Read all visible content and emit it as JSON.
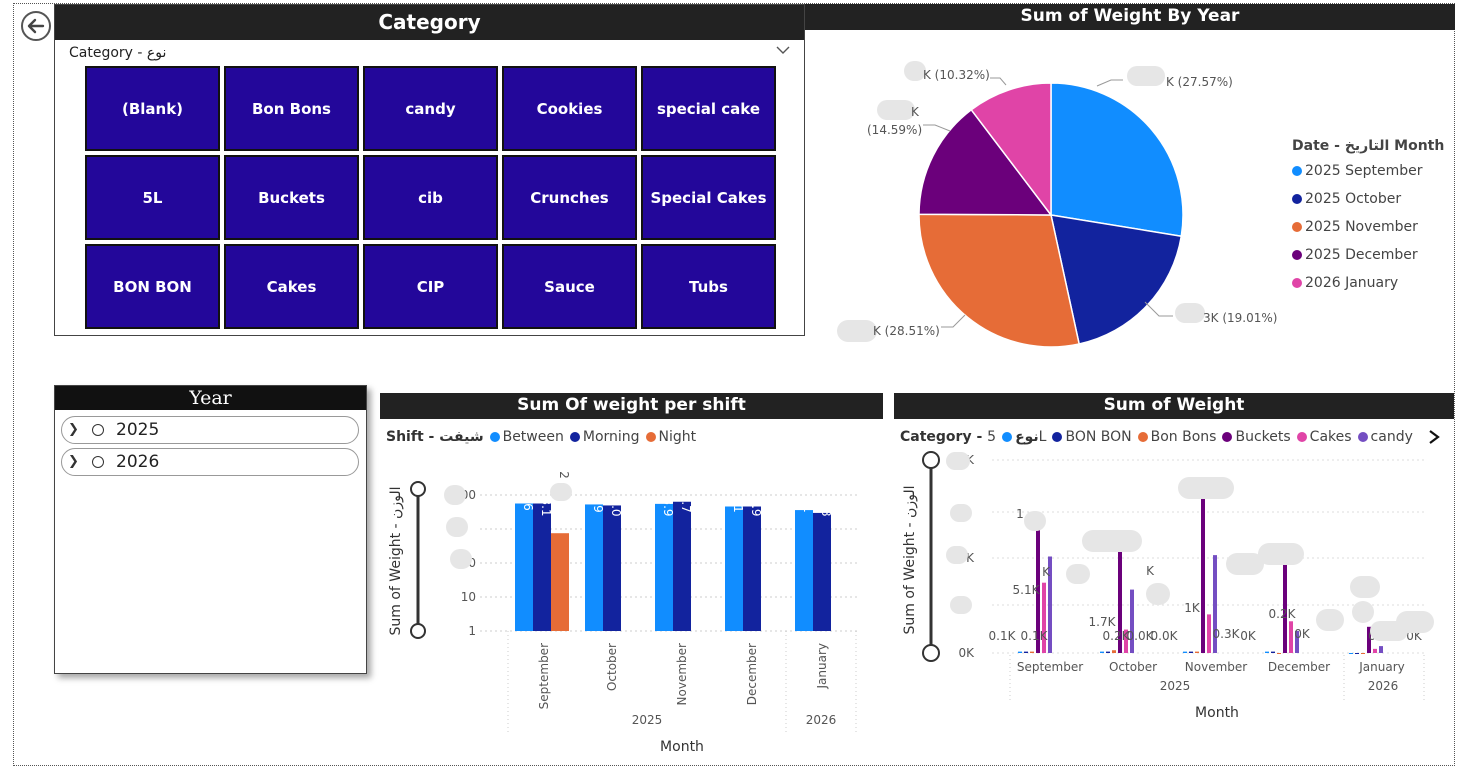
{
  "category_slicer": {
    "title": "Category",
    "header": "Category - نوع",
    "tiles": [
      "(Blank)",
      "Bon Bons",
      "candy",
      "Cookies",
      "special cake",
      "5L",
      "Buckets",
      "cib",
      "Crunches",
      "Special Cakes",
      "BON BON",
      "Cakes",
      "CIP",
      "Sauce",
      "Tubs"
    ]
  },
  "year_slicer": {
    "title": "Year",
    "items": [
      {
        "label": "2025"
      },
      {
        "label": "2026"
      }
    ]
  },
  "pie": {
    "title": "Sum of Weight By Year",
    "legend_title": "Date - التاريخ Month",
    "labels": [
      "K (27.57%)",
      "3K (19.01%)",
      "K (28.51%)",
      "(14.59%)",
      "K (10.32%)",
      "K"
    ],
    "chart_data": {
      "type": "pie",
      "categories": [
        "2025 September",
        "2025 October",
        "2025 November",
        "2025 December",
        "2026 January"
      ],
      "values": [
        27.57,
        19.01,
        28.51,
        14.59,
        10.32
      ],
      "colors": [
        "#118dff",
        "#12239e",
        "#e66c37",
        "#6b007b",
        "#e044a7"
      ]
    }
  },
  "shift_chart": {
    "title": "Sum Of weight per shift",
    "legend_title": "Shift - شيفت",
    "legend": [
      {
        "name": "Between",
        "color": "#118dff"
      },
      {
        "name": "Morning",
        "color": "#12239e"
      },
      {
        "name": "Night",
        "color": "#e66c37"
      }
    ],
    "ylabel": "Sum of Weight - الوزن",
    "xlabel": "Month",
    "yticks": [
      "000",
      "",
      "0",
      "10",
      "1"
    ],
    "months": [
      "September",
      "October",
      "November",
      "December",
      "January"
    ],
    "years": [
      "2025",
      "2026"
    ],
    "bar_labels": [
      "6",
      "3.1",
      "2",
      ".9",
      "7.0",
      "3.9",
      ".7",
      ".1",
      "3.9",
      ".1",
      "4.8"
    ],
    "chart_data": {
      "type": "bar",
      "scale": "log",
      "categories": [
        "September",
        "October",
        "November",
        "December",
        "January"
      ],
      "series": [
        {
          "name": "Between",
          "values": [
            1000,
            950,
            980,
            850,
            700
          ]
        },
        {
          "name": "Morning",
          "values": [
            1000,
            900,
            1100,
            850,
            600
          ]
        },
        {
          "name": "Night",
          "values": [
            200,
            null,
            null,
            null,
            null
          ]
        }
      ]
    }
  },
  "weight_chart": {
    "title": "Sum of Weight",
    "legend_title": "Category - نوع",
    "legend": [
      {
        "name": "5L",
        "color": "#118dff"
      },
      {
        "name": "BON BON",
        "color": "#12239e"
      },
      {
        "name": "Bon Bons",
        "color": "#e66c37"
      },
      {
        "name": "Buckets",
        "color": "#6b007b"
      },
      {
        "name": "Cakes",
        "color": "#e044a7"
      },
      {
        "name": "candy",
        "color": "#744ec2"
      }
    ],
    "ylabel": "Sum of Weight - الوزن",
    "xlabel": "Month",
    "yticks": [
      "K",
      "",
      "K",
      "",
      "0K"
    ],
    "months": [
      "September",
      "October",
      "November",
      "December",
      "January"
    ],
    "years": [
      "2025",
      "2026"
    ],
    "labels": [
      "1",
      "5.1K",
      "0.1K",
      "0.1K",
      "K",
      "0.1K",
      "1.7K",
      "0.2K",
      "0.0K",
      "K",
      "0.0K",
      "1K",
      "0.3K",
      "0K",
      "0.2K",
      "0K",
      "2",
      "0K",
      "0K"
    ],
    "chart_data": {
      "type": "bar",
      "categories": [
        "September",
        "October",
        "November",
        "December",
        "January"
      ],
      "series": [
        {
          "name": "5L",
          "values": [
            0.1,
            0.1,
            0.1,
            0.1,
            0.0
          ]
        },
        {
          "name": "BON BON",
          "values": [
            0.1,
            0.1,
            0.1,
            0.1,
            0.0
          ]
        },
        {
          "name": "Bon Bons",
          "values": [
            0.1,
            0.2,
            0.1,
            0.0,
            0.0
          ]
        },
        {
          "name": "Buckets",
          "values": [
            9.8,
            8.6,
            12.4,
            6.8,
            1.9
          ]
        },
        {
          "name": "Cakes",
          "values": [
            5.1,
            1.7,
            2.8,
            2.3,
            0.3
          ]
        },
        {
          "name": "candy",
          "values": [
            7.0,
            4.6,
            7.1,
            1.6,
            0.5
          ]
        }
      ]
    }
  }
}
